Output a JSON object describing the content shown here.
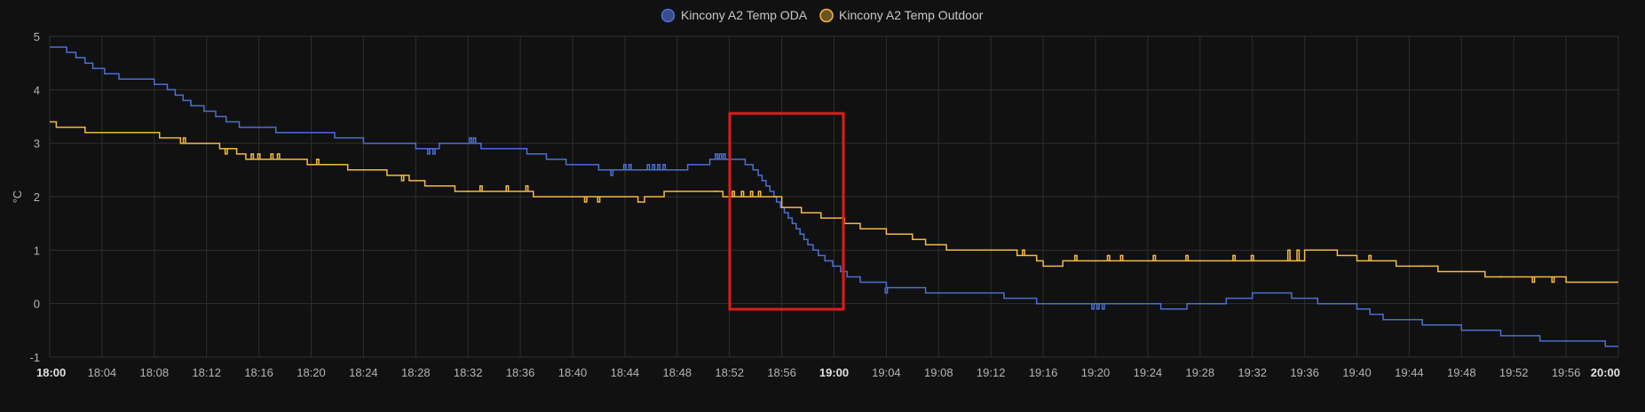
{
  "chart_data": {
    "type": "line",
    "step": true,
    "ylabel": "°C",
    "ylim": [
      -1,
      5
    ],
    "yticks": [
      5,
      4,
      3,
      2,
      1,
      0,
      -1
    ],
    "xlim": [
      "18:00",
      "20:00"
    ],
    "xticks": [
      {
        "t": "18:00",
        "bold": true
      },
      {
        "t": "18:04"
      },
      {
        "t": "18:08"
      },
      {
        "t": "18:12"
      },
      {
        "t": "18:16"
      },
      {
        "t": "18:20"
      },
      {
        "t": "18:24"
      },
      {
        "t": "18:28"
      },
      {
        "t": "18:32"
      },
      {
        "t": "18:36"
      },
      {
        "t": "18:40"
      },
      {
        "t": "18:44"
      },
      {
        "t": "18:48"
      },
      {
        "t": "18:52"
      },
      {
        "t": "18:56"
      },
      {
        "t": "19:00",
        "bold": true
      },
      {
        "t": "19:04"
      },
      {
        "t": "19:08"
      },
      {
        "t": "19:12"
      },
      {
        "t": "19:16"
      },
      {
        "t": "19:20"
      },
      {
        "t": "19:24"
      },
      {
        "t": "19:28"
      },
      {
        "t": "19:32"
      },
      {
        "t": "19:36"
      },
      {
        "t": "19:40"
      },
      {
        "t": "19:44"
      },
      {
        "t": "19:48"
      },
      {
        "t": "19:52"
      },
      {
        "t": "19:56"
      },
      {
        "t": "20:00",
        "bold": true
      }
    ],
    "grid": true,
    "legend_position": "top-center",
    "series": [
      {
        "name": "Kincony A2 Temp ODA",
        "color": "#4a6fd4",
        "fill": "#3a4d8a",
        "points": [
          [
            "18:00",
            4.8
          ],
          [
            "18:01.3",
            4.7
          ],
          [
            "18:02",
            4.6
          ],
          [
            "18:02.7",
            4.5
          ],
          [
            "18:03.3",
            4.4
          ],
          [
            "18:04.2",
            4.3
          ],
          [
            "18:05.3",
            4.2
          ],
          [
            "18:08",
            4.1
          ],
          [
            "18:09",
            4.0
          ],
          [
            "18:09.6",
            3.9
          ],
          [
            "18:10.2",
            3.8
          ],
          [
            "18:10.8",
            3.7
          ],
          [
            "18:11.8",
            3.6
          ],
          [
            "18:12.7",
            3.5
          ],
          [
            "18:13.5",
            3.4
          ],
          [
            "18:14.5",
            3.3
          ],
          [
            "18:17.3",
            3.2
          ],
          [
            "18:21.8",
            3.1
          ],
          [
            "18:24",
            3.0
          ],
          [
            "18:28",
            2.9
          ],
          [
            "18:29.8",
            3.0
          ],
          [
            "18:33",
            2.9
          ],
          [
            "18:36.5",
            2.8
          ],
          [
            "18:38",
            2.7
          ],
          [
            "18:39.5",
            2.6
          ],
          [
            "18:42",
            2.5
          ],
          [
            "18:48.8",
            2.6
          ],
          [
            "18:50.5",
            2.7
          ],
          [
            "18:53.2",
            2.6
          ],
          [
            "18:53.8",
            2.5
          ],
          [
            "18:54.2",
            2.4
          ],
          [
            "18:54.5",
            2.3
          ],
          [
            "18:54.8",
            2.2
          ],
          [
            "18:55.1",
            2.1
          ],
          [
            "18:55.4",
            2.0
          ],
          [
            "18:55.6",
            1.9
          ],
          [
            "18:55.9",
            1.8
          ],
          [
            "18:56.2",
            1.7
          ],
          [
            "18:56.5",
            1.6
          ],
          [
            "18:56.8",
            1.5
          ],
          [
            "18:57.1",
            1.4
          ],
          [
            "18:57.4",
            1.3
          ],
          [
            "18:57.7",
            1.2
          ],
          [
            "18:58",
            1.1
          ],
          [
            "18:58.4",
            1.0
          ],
          [
            "18:58.8",
            0.9
          ],
          [
            "18:59.3",
            0.8
          ],
          [
            "18:59.9",
            0.7
          ],
          [
            "19:00.5",
            0.6
          ],
          [
            "19:01",
            0.5
          ],
          [
            "19:02",
            0.4
          ],
          [
            "19:04",
            0.3
          ],
          [
            "19:07",
            0.2
          ],
          [
            "19:13",
            0.1
          ],
          [
            "19:15.5",
            0.0
          ],
          [
            "19:25",
            -0.1
          ],
          [
            "19:27",
            0.0
          ],
          [
            "19:30",
            0.1
          ],
          [
            "19:32",
            0.2
          ],
          [
            "19:35",
            0.1
          ],
          [
            "19:37",
            0.0
          ],
          [
            "19:40",
            -0.1
          ],
          [
            "19:41",
            -0.2
          ],
          [
            "19:42",
            -0.3
          ],
          [
            "19:45",
            -0.4
          ],
          [
            "19:48",
            -0.5
          ],
          [
            "19:51",
            -0.6
          ],
          [
            "19:54",
            -0.7
          ],
          [
            "19:59",
            -0.8
          ],
          [
            "20:00",
            -0.8
          ]
        ],
        "blips": [
          [
            "18:29.0",
            2.8
          ],
          [
            "18:29.4",
            2.8
          ],
          [
            "18:32.2",
            3.1
          ],
          [
            "18:32.5",
            3.1
          ],
          [
            "18:43",
            2.4
          ],
          [
            "18:44",
            2.6
          ],
          [
            "18:44.4",
            2.6
          ],
          [
            "18:45.8",
            2.6
          ],
          [
            "18:46.2",
            2.6
          ],
          [
            "18:46.6",
            2.6
          ],
          [
            "18:47",
            2.6
          ],
          [
            "18:51",
            2.8
          ],
          [
            "18:51.3",
            2.8
          ],
          [
            "18:51.6",
            2.8
          ],
          [
            "19:04",
            0.2
          ],
          [
            "19:19.8",
            -0.1
          ],
          [
            "19:20.2",
            -0.1
          ],
          [
            "19:20.6",
            -0.1
          ]
        ]
      },
      {
        "name": "Kincony A2 Temp Outdoor",
        "color": "#f5b942",
        "fill": "#6b5520",
        "points": [
          [
            "18:00",
            3.4
          ],
          [
            "18:00.5",
            3.3
          ],
          [
            "18:02.7",
            3.2
          ],
          [
            "18:08.4",
            3.1
          ],
          [
            "18:10",
            3.0
          ],
          [
            "18:13",
            2.9
          ],
          [
            "18:14.3",
            2.8
          ],
          [
            "18:15",
            2.7
          ],
          [
            "18:19.7",
            2.6
          ],
          [
            "18:22.8",
            2.5
          ],
          [
            "18:25.8",
            2.4
          ],
          [
            "18:27.5",
            2.3
          ],
          [
            "18:28.7",
            2.2
          ],
          [
            "18:31",
            2.1
          ],
          [
            "18:37",
            2.0
          ],
          [
            "18:45",
            1.9
          ],
          [
            "18:45.5",
            2.0
          ],
          [
            "18:47",
            2.1
          ],
          [
            "18:51.5",
            2.0
          ],
          [
            "18:56",
            1.8
          ],
          [
            "18:57.5",
            1.7
          ],
          [
            "18:59",
            1.6
          ],
          [
            "19:00.8",
            1.5
          ],
          [
            "19:02",
            1.4
          ],
          [
            "19:04",
            1.3
          ],
          [
            "19:06",
            1.2
          ],
          [
            "19:07",
            1.1
          ],
          [
            "19:08.6",
            1.0
          ],
          [
            "19:14",
            0.9
          ],
          [
            "19:15.5",
            0.8
          ],
          [
            "19:16",
            0.7
          ],
          [
            "19:17.5",
            0.8
          ],
          [
            "19:30",
            0.8
          ],
          [
            "19:36",
            1.0
          ],
          [
            "19:38.5",
            0.9
          ],
          [
            "19:40",
            0.8
          ],
          [
            "19:43",
            0.7
          ],
          [
            "19:46.2",
            0.6
          ],
          [
            "19:49.8",
            0.5
          ],
          [
            "19:56",
            0.4
          ],
          [
            "20:00",
            0.4
          ]
        ],
        "blips": [
          [
            "18:10.3",
            3.1
          ],
          [
            "18:13.5",
            2.8
          ],
          [
            "18:15.5",
            2.8
          ],
          [
            "18:16",
            2.8
          ],
          [
            "18:17",
            2.8
          ],
          [
            "18:17.5",
            2.8
          ],
          [
            "18:20.5",
            2.7
          ],
          [
            "18:22",
            2.6
          ],
          [
            "18:27",
            2.3
          ],
          [
            "18:32",
            2.1
          ],
          [
            "18:33",
            2.2
          ],
          [
            "18:35",
            2.2
          ],
          [
            "18:36.5",
            2.2
          ],
          [
            "18:41",
            1.9
          ],
          [
            "18:42",
            1.9
          ],
          [
            "18:51",
            2.1
          ],
          [
            "18:52.3",
            2.1
          ],
          [
            "18:53",
            2.1
          ],
          [
            "18:53.7",
            2.1
          ],
          [
            "18:54.3",
            2.1
          ],
          [
            "19:14.5",
            1.0
          ],
          [
            "19:18.5",
            0.9
          ],
          [
            "19:21",
            0.9
          ],
          [
            "19:22",
            0.9
          ],
          [
            "19:24.5",
            0.9
          ],
          [
            "19:27",
            0.9
          ],
          [
            "19:30.6",
            0.9
          ],
          [
            "19:32",
            0.9
          ],
          [
            "19:34.8",
            1.0
          ],
          [
            "19:35.5",
            1.0
          ],
          [
            "19:41",
            0.9
          ],
          [
            "19:44",
            0.7
          ],
          [
            "19:45",
            0.7
          ],
          [
            "19:51",
            0.5
          ],
          [
            "19:53.5",
            0.4
          ],
          [
            "19:55",
            0.4
          ]
        ]
      }
    ]
  }
}
